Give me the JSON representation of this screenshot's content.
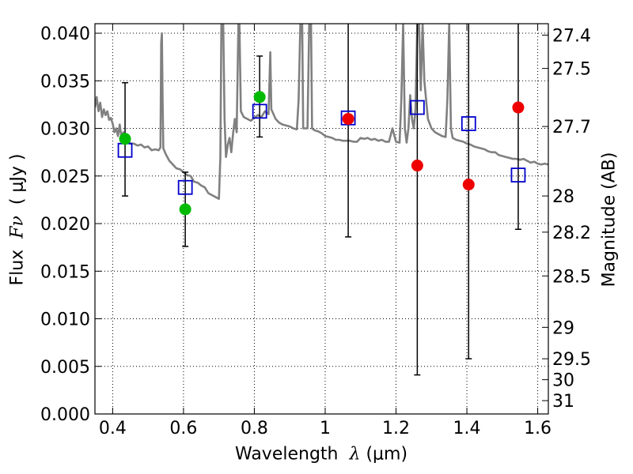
{
  "chart_data": {
    "type": "scatter",
    "xlabel_text": "Wavelength",
    "xlabel_symbol": "λ",
    "xlabel_unit": "(μm)",
    "ylabel_text": "Flux",
    "ylabel_symbol": "Fν",
    "ylabel_unit": "( μJy )",
    "y2label": "Magnitude (AB)",
    "xlim": [
      0.35,
      1.63
    ],
    "ylim": [
      0.0,
      0.041
    ],
    "grid": true,
    "x_ticks": [
      0.4,
      0.6,
      0.8,
      1.0,
      1.2,
      1.4,
      1.6
    ],
    "x_tick_labels": [
      "0.4",
      "0.6",
      "0.8",
      "1",
      "1.2",
      "1.4",
      "1.6"
    ],
    "y_ticks": [
      0.0,
      0.005,
      0.01,
      0.015,
      0.02,
      0.025,
      0.03,
      0.035,
      0.04
    ],
    "y_tick_labels": [
      "0.000",
      "0.005",
      "0.010",
      "0.015",
      "0.020",
      "0.025",
      "0.030",
      "0.035",
      "0.040"
    ],
    "y2_ticks": [
      {
        "label": "27.4",
        "flux": 0.0398
      },
      {
        "label": "27.5",
        "flux": 0.0363
      },
      {
        "label": "27.7",
        "flux": 0.0302
      },
      {
        "label": "28",
        "flux": 0.0229
      },
      {
        "label": "28.2",
        "flux": 0.0191
      },
      {
        "label": "28.5",
        "flux": 0.0145
      },
      {
        "label": "29",
        "flux": 0.0091
      },
      {
        "label": "29.5",
        "flux": 0.0058
      },
      {
        "label": "30",
        "flux": 0.0036
      },
      {
        "label": "31",
        "flux": 0.0014
      }
    ],
    "series": [
      {
        "marker": "square-open",
        "color": "#0000cc",
        "points": [
          {
            "x": 0.435,
            "y": 0.0277
          },
          {
            "x": 0.605,
            "y": 0.0238
          },
          {
            "x": 0.815,
            "y": 0.0318
          },
          {
            "x": 1.065,
            "y": 0.0311
          },
          {
            "x": 1.26,
            "y": 0.0322
          },
          {
            "x": 1.405,
            "y": 0.0305
          },
          {
            "x": 1.545,
            "y": 0.0251
          }
        ]
      },
      {
        "marker": "circle-filled",
        "color": "#00bb00",
        "points": [
          {
            "x": 0.435,
            "y": 0.0289,
            "yerr_lo": 0.0229,
            "yerr_hi": 0.0348
          },
          {
            "x": 0.605,
            "y": 0.0215,
            "yerr_lo": 0.0176,
            "yerr_hi": 0.0254
          },
          {
            "x": 0.815,
            "y": 0.0333,
            "yerr_lo": 0.0291,
            "yerr_hi": 0.0376
          }
        ]
      },
      {
        "marker": "circle-filled",
        "color": "#ee0000",
        "points": [
          {
            "x": 1.065,
            "y": 0.031,
            "yerr_lo": 0.0186,
            "yerr_hi": 0.041
          },
          {
            "x": 1.26,
            "y": 0.0261,
            "yerr_lo": 0.0041,
            "yerr_hi": 0.041
          },
          {
            "x": 1.405,
            "y": 0.0241,
            "yerr_lo": 0.0058,
            "yerr_hi": 0.041
          },
          {
            "x": 1.545,
            "y": 0.0322,
            "yerr_lo": 0.0194,
            "yerr_hi": 0.041
          }
        ]
      },
      {
        "marker": "line",
        "color": "#808080",
        "points": [
          [
            0.35,
            0.0322
          ],
          [
            0.355,
            0.0333
          ],
          [
            0.36,
            0.0318
          ],
          [
            0.365,
            0.0327
          ],
          [
            0.37,
            0.0312
          ],
          [
            0.375,
            0.032
          ],
          [
            0.38,
            0.0314
          ],
          [
            0.385,
            0.0318
          ],
          [
            0.39,
            0.0309
          ],
          [
            0.395,
            0.0311
          ],
          [
            0.4,
            0.0305
          ],
          [
            0.405,
            0.0296
          ],
          [
            0.41,
            0.03
          ],
          [
            0.415,
            0.0292
          ],
          [
            0.42,
            0.0304
          ],
          [
            0.425,
            0.029
          ],
          [
            0.43,
            0.0296
          ],
          [
            0.435,
            0.0288
          ],
          [
            0.44,
            0.0291
          ],
          [
            0.45,
            0.0284
          ],
          [
            0.46,
            0.0284
          ],
          [
            0.47,
            0.0282
          ],
          [
            0.48,
            0.0283
          ],
          [
            0.49,
            0.028
          ],
          [
            0.5,
            0.0281
          ],
          [
            0.51,
            0.0277
          ],
          [
            0.52,
            0.0278
          ],
          [
            0.53,
            0.0277
          ],
          [
            0.535,
            0.028
          ],
          [
            0.537,
            0.039
          ],
          [
            0.539,
            0.04
          ],
          [
            0.541,
            0.033
          ],
          [
            0.543,
            0.0279
          ],
          [
            0.55,
            0.0273
          ],
          [
            0.56,
            0.0266
          ],
          [
            0.57,
            0.0262
          ],
          [
            0.58,
            0.0258
          ],
          [
            0.59,
            0.0257
          ],
          [
            0.6,
            0.0254
          ],
          [
            0.61,
            0.0251
          ],
          [
            0.62,
            0.025
          ],
          [
            0.63,
            0.0244
          ],
          [
            0.64,
            0.0243
          ],
          [
            0.65,
            0.024
          ],
          [
            0.66,
            0.0238
          ],
          [
            0.67,
            0.0232
          ],
          [
            0.68,
            0.023
          ],
          [
            0.69,
            0.0228
          ],
          [
            0.7,
            0.0226
          ],
          [
            0.704,
            0.027
          ],
          [
            0.707,
            0.041
          ],
          [
            0.712,
            0.041
          ],
          [
            0.716,
            0.031
          ],
          [
            0.72,
            0.027
          ],
          [
            0.725,
            0.0283
          ],
          [
            0.73,
            0.029
          ],
          [
            0.735,
            0.0275
          ],
          [
            0.74,
            0.0295
          ],
          [
            0.745,
            0.031
          ],
          [
            0.75,
            0.0296
          ],
          [
            0.755,
            0.041
          ],
          [
            0.758,
            0.041
          ],
          [
            0.762,
            0.0318
          ],
          [
            0.77,
            0.0312
          ],
          [
            0.78,
            0.031
          ],
          [
            0.79,
            0.0308
          ],
          [
            0.8,
            0.0311
          ],
          [
            0.81,
            0.0314
          ],
          [
            0.82,
            0.0312
          ],
          [
            0.83,
            0.0318
          ],
          [
            0.84,
            0.0315
          ],
          [
            0.845,
            0.038
          ],
          [
            0.848,
            0.032
          ],
          [
            0.86,
            0.031
          ],
          [
            0.87,
            0.0306
          ],
          [
            0.88,
            0.0304
          ],
          [
            0.89,
            0.0303
          ],
          [
            0.9,
            0.0302
          ],
          [
            0.91,
            0.03
          ],
          [
            0.92,
            0.0299
          ],
          [
            0.925,
            0.033
          ],
          [
            0.93,
            0.041
          ],
          [
            0.935,
            0.041
          ],
          [
            0.938,
            0.03
          ],
          [
            0.945,
            0.03
          ],
          [
            0.95,
            0.03
          ],
          [
            0.955,
            0.041
          ],
          [
            0.96,
            0.041
          ],
          [
            0.963,
            0.03
          ],
          [
            0.97,
            0.0298
          ],
          [
            0.98,
            0.0297
          ],
          [
            0.99,
            0.0295
          ],
          [
            1.0,
            0.0292
          ],
          [
            1.01,
            0.0291
          ],
          [
            1.02,
            0.029
          ],
          [
            1.03,
            0.0288
          ],
          [
            1.04,
            0.0288
          ],
          [
            1.05,
            0.0287
          ],
          [
            1.06,
            0.0287
          ],
          [
            1.07,
            0.0287
          ],
          [
            1.08,
            0.0286
          ],
          [
            1.09,
            0.0286
          ],
          [
            1.1,
            0.029
          ],
          [
            1.11,
            0.0289
          ],
          [
            1.12,
            0.029
          ],
          [
            1.13,
            0.0288
          ],
          [
            1.14,
            0.0289
          ],
          [
            1.15,
            0.0287
          ],
          [
            1.16,
            0.0288
          ],
          [
            1.17,
            0.0286
          ],
          [
            1.18,
            0.0286
          ],
          [
            1.19,
            0.03
          ],
          [
            1.2,
            0.0286
          ],
          [
            1.21,
            0.0285
          ],
          [
            1.215,
            0.033
          ],
          [
            1.22,
            0.041
          ],
          [
            1.225,
            0.03
          ],
          [
            1.23,
            0.0285
          ],
          [
            1.235,
            0.03
          ],
          [
            1.24,
            0.0335
          ],
          [
            1.245,
            0.031
          ],
          [
            1.25,
            0.03
          ],
          [
            1.255,
            0.032
          ],
          [
            1.26,
            0.041
          ],
          [
            1.265,
            0.041
          ],
          [
            1.27,
            0.034
          ],
          [
            1.275,
            0.041
          ],
          [
            1.28,
            0.035
          ],
          [
            1.29,
            0.031
          ],
          [
            1.3,
            0.03
          ],
          [
            1.31,
            0.0296
          ],
          [
            1.32,
            0.0294
          ],
          [
            1.33,
            0.0292
          ],
          [
            1.34,
            0.0291
          ],
          [
            1.345,
            0.033
          ],
          [
            1.35,
            0.041
          ],
          [
            1.355,
            0.03
          ],
          [
            1.36,
            0.029
          ],
          [
            1.37,
            0.0288
          ],
          [
            1.38,
            0.0287
          ],
          [
            1.39,
            0.0286
          ],
          [
            1.4,
            0.0284
          ],
          [
            1.41,
            0.0283
          ],
          [
            1.42,
            0.0281
          ],
          [
            1.43,
            0.028
          ],
          [
            1.44,
            0.0279
          ],
          [
            1.45,
            0.0278
          ],
          [
            1.46,
            0.0276
          ],
          [
            1.47,
            0.0275
          ],
          [
            1.48,
            0.0275
          ],
          [
            1.49,
            0.0272
          ],
          [
            1.5,
            0.0271
          ],
          [
            1.51,
            0.027
          ],
          [
            1.52,
            0.0269
          ],
          [
            1.53,
            0.0268
          ],
          [
            1.54,
            0.0268
          ],
          [
            1.55,
            0.0267
          ],
          [
            1.56,
            0.0268
          ],
          [
            1.57,
            0.0266
          ],
          [
            1.58,
            0.0264
          ],
          [
            1.59,
            0.0265
          ],
          [
            1.6,
            0.0263
          ],
          [
            1.61,
            0.0262
          ],
          [
            1.62,
            0.0263
          ],
          [
            1.63,
            0.0262
          ]
        ]
      }
    ]
  }
}
